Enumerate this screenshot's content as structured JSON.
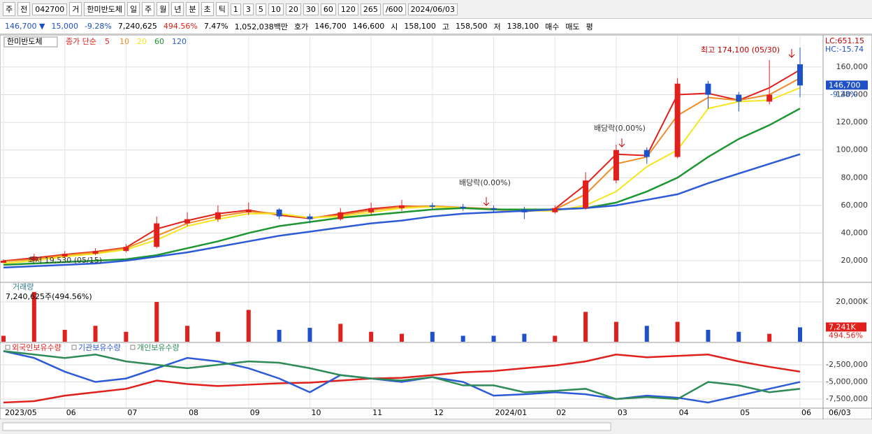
{
  "toolbar": {
    "row1": [
      "주",
      "전",
      "042700",
      "거",
      "한미반도체",
      "일",
      "주",
      "월",
      "년",
      "분",
      "초",
      "틱",
      "1",
      "3",
      "5",
      "10",
      "20",
      "30",
      "60",
      "120",
      "265",
      "/600",
      "2024/06/03"
    ],
    "row2": [
      "146,700 ▼",
      "15,000",
      "-9.28%",
      "7,240,625",
      "494.56%",
      "7.47%",
      "1,052,038백만",
      "호가",
      "146,700",
      "146,600",
      "시",
      "158,100",
      "고",
      "158,500",
      "저",
      "138,100",
      "매수",
      "매도",
      "평"
    ]
  },
  "chart_data": [
    {
      "type": "candlestick",
      "title": "한미반도체",
      "legend_title": "종가 단순",
      "categories": [
        "2023/05",
        null,
        "06",
        null,
        "07",
        null,
        "08",
        null,
        "09",
        null,
        "10",
        null,
        "11",
        null,
        "12",
        null,
        "2024/01",
        null,
        "02",
        null,
        "03",
        null,
        "04",
        null,
        "05",
        null,
        "06"
      ],
      "x_end_label": "06/03",
      "open": [
        18500,
        20000,
        23000,
        25000,
        27000,
        30000,
        47000,
        50000,
        55000,
        57000,
        52000,
        50000,
        55000,
        58000,
        60000,
        59000,
        58000,
        57000,
        55000,
        58000,
        78000,
        100000,
        95000,
        148000,
        140000,
        135000,
        162000
      ],
      "high": [
        21000,
        25000,
        27000,
        29000,
        32000,
        52000,
        55000,
        60000,
        62000,
        58000,
        54000,
        58000,
        62000,
        64000,
        62000,
        61000,
        60000,
        59000,
        60000,
        84000,
        104000,
        102000,
        152000,
        150000,
        142000,
        165000,
        174100
      ],
      "low": [
        19530,
        19800,
        22000,
        24000,
        26000,
        29000,
        45000,
        48000,
        53000,
        50000,
        47000,
        49000,
        53000,
        56000,
        57000,
        56000,
        55000,
        50000,
        54000,
        57000,
        76000,
        90000,
        94000,
        130000,
        128000,
        133000,
        138100
      ],
      "close": [
        20000,
        23000,
        25000,
        27000,
        30000,
        47000,
        50000,
        55000,
        57000,
        52000,
        50000,
        55000,
        58000,
        60000,
        59000,
        58000,
        57000,
        55000,
        58000,
        78000,
        100000,
        95000,
        148000,
        140000,
        135000,
        140000,
        146700
      ],
      "up_color": "#e0201c",
      "down_color": "#1e50c8",
      "series": [
        {
          "name": "5",
          "color": "#e0201c",
          "values": [
            19800,
            22000,
            24500,
            26500,
            29500,
            43000,
            49000,
            54000,
            56500,
            53000,
            50500,
            54000,
            57500,
            59500,
            59000,
            58000,
            57000,
            55500,
            57500,
            75000,
            97000,
            96000,
            140000,
            141000,
            136000,
            145000,
            158000
          ]
        },
        {
          "name": "10",
          "color": "#f08c28",
          "values": [
            19500,
            21000,
            24000,
            26000,
            29000,
            38000,
            47000,
            52000,
            55500,
            54000,
            51000,
            53000,
            56500,
            59000,
            59500,
            58500,
            57500,
            56000,
            57000,
            68000,
            90000,
            95000,
            125000,
            138000,
            136000,
            140000,
            152000
          ]
        },
        {
          "name": "20",
          "color": "#f5e61e",
          "values": [
            18000,
            20000,
            23000,
            25000,
            28000,
            35000,
            45000,
            50000,
            54000,
            54000,
            51000,
            52000,
            55000,
            58000,
            59000,
            58000,
            57000,
            56000,
            56000,
            60000,
            70000,
            88000,
            100000,
            130000,
            135000,
            136000,
            145000
          ]
        },
        {
          "name": "60",
          "color": "#1e9632",
          "values": [
            17000,
            18000,
            19000,
            20000,
            21000,
            24000,
            29000,
            34000,
            40000,
            45000,
            48000,
            51000,
            53000,
            55000,
            57000,
            58000,
            57000,
            57000,
            57000,
            58000,
            62000,
            70000,
            80000,
            95000,
            108000,
            118000,
            130000
          ]
        },
        {
          "name": "120",
          "color": "#2d5ad7",
          "values": [
            15000,
            16000,
            17000,
            18000,
            20000,
            23000,
            26000,
            30000,
            34000,
            38000,
            41000,
            44000,
            47000,
            49000,
            52000,
            54000,
            55000,
            56000,
            57000,
            58000,
            60000,
            64000,
            68000,
            76000,
            83000,
            90000,
            97000
          ]
        }
      ],
      "ylim": [
        4850,
        182200
      ],
      "yticks": [
        {
          "value": 20000,
          "label": "20,000"
        },
        {
          "value": 40000,
          "label": "40,000"
        },
        {
          "value": 60000,
          "label": "60,000"
        },
        {
          "value": 80000,
          "label": "80,000"
        },
        {
          "value": 100000,
          "label": "100,000"
        },
        {
          "value": 120000,
          "label": "120,000"
        },
        {
          "value": 140000,
          "label": "140,000"
        },
        {
          "value": 160000,
          "label": "160,000"
        }
      ],
      "grid": true,
      "annotations": [
        "최고 174,100 (05/30)",
        "최저 19,530 (05/15)",
        "배당락(0.00%)",
        "배당락(0.00%)"
      ],
      "right_labels": [
        "LC:651.15",
        "HC:-15.74"
      ],
      "last_label": "146,700",
      "last_change": "-9.28%"
    },
    {
      "type": "bar",
      "title": "거래량",
      "subtitle": "7,240,625주(494.56%)",
      "values": [
        3000,
        25000,
        6000,
        8000,
        5000,
        20000,
        8000,
        5000,
        16000,
        6000,
        7000,
        9000,
        5000,
        4000,
        5000,
        3000,
        3000,
        4000,
        3000,
        15000,
        10000,
        8000,
        10000,
        6000,
        5000,
        4000,
        7241
      ],
      "ylim": [
        0,
        29500
      ],
      "yticks": [
        {
          "value": 20000,
          "label": "20,000K"
        }
      ],
      "grid": true,
      "last_label": "7,241K",
      "last_change": "494.56%"
    },
    {
      "type": "line",
      "series": [
        {
          "name": "외국인보유수량",
          "color": "#e0201c",
          "values": [
            -8000000,
            -7800000,
            -7000000,
            -6500000,
            -6000000,
            -4800000,
            -5300000,
            -5600000,
            -5400000,
            -5200000,
            -5100000,
            -4800000,
            -4500000,
            -4400000,
            -4000000,
            -3600000,
            -3400000,
            -3000000,
            -2600000,
            -2000000,
            -1000000,
            -1400000,
            -1200000,
            -1000000,
            -2000000,
            -2800000,
            -3500000
          ]
        },
        {
          "name": "기관보유수량",
          "color": "#2d5ad7",
          "values": [
            -500000,
            -1500000,
            -3500000,
            -5000000,
            -4500000,
            -3000000,
            -1500000,
            -2000000,
            -3000000,
            -4500000,
            -6500000,
            -4000000,
            -4500000,
            -5000000,
            -4300000,
            -5000000,
            -7000000,
            -6800000,
            -6500000,
            -6800000,
            -7500000,
            -7000000,
            -7300000,
            -8000000,
            -7000000,
            -6000000,
            -5000000
          ]
        },
        {
          "name": "개인보유수량",
          "color": "#2e8b57",
          "values": [
            -500000,
            -1000000,
            -1500000,
            -1000000,
            -2000000,
            -2500000,
            -3000000,
            -2500000,
            -2000000,
            -2200000,
            -3000000,
            -4000000,
            -4500000,
            -4800000,
            -4300000,
            -5500000,
            -5500000,
            -6500000,
            -6300000,
            -6000000,
            -7500000,
            -7200000,
            -7500000,
            -5000000,
            -5500000,
            -6500000,
            -6000000
          ]
        }
      ],
      "ylim": [
        -8720000,
        660000
      ],
      "yticks": [
        {
          "value": -2500000,
          "label": "-2,500,000"
        },
        {
          "value": -5000000,
          "label": "-5,000,000"
        },
        {
          "value": -7500000,
          "label": "-7,500,000"
        }
      ],
      "grid": true
    }
  ]
}
